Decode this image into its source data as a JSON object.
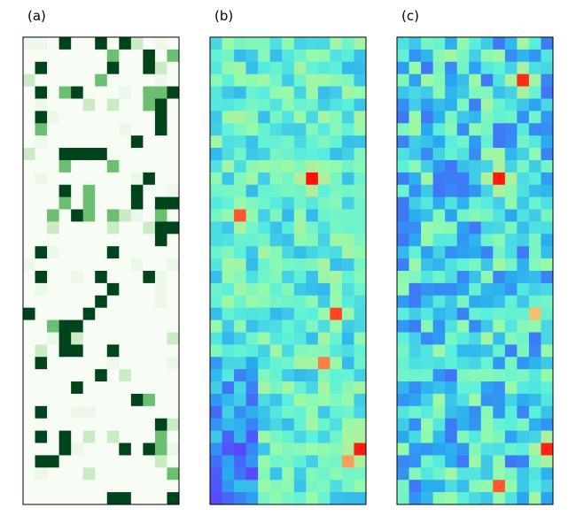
{
  "chart_data": [
    {
      "type": "heatmap",
      "label": "(a)",
      "colormap": "Greens",
      "rows": 38,
      "cols": 13,
      "value_range": [
        0,
        1
      ],
      "axes_ticks": "none",
      "seed": 11,
      "density": 0.22
    },
    {
      "type": "heatmap",
      "label": "(b)",
      "colormap": "rainbow",
      "rows": 38,
      "cols": 13,
      "value_range": [
        0,
        1
      ],
      "axes_ticks": "none",
      "seed": 29,
      "hotspots": [
        {
          "row": 11,
          "col": 8,
          "value": 0.98
        },
        {
          "row": 14,
          "col": 2,
          "value": 0.9
        },
        {
          "row": 22,
          "col": 10,
          "value": 0.92
        },
        {
          "row": 26,
          "col": 9,
          "value": 0.85
        },
        {
          "row": 33,
          "col": 12,
          "value": 0.97
        },
        {
          "row": 34,
          "col": 11,
          "value": 0.8
        }
      ],
      "low_region_rows": [
        26,
        37
      ]
    },
    {
      "type": "heatmap",
      "label": "(c)",
      "colormap": "rainbow",
      "rows": 38,
      "cols": 13,
      "value_range": [
        0,
        1
      ],
      "axes_ticks": "none",
      "seed": 47,
      "hotspots": [
        {
          "row": 3,
          "col": 10,
          "value": 0.95
        },
        {
          "row": 11,
          "col": 8,
          "value": 0.97
        },
        {
          "row": 22,
          "col": 11,
          "value": 0.75
        },
        {
          "row": 33,
          "col": 12,
          "value": 0.96
        },
        {
          "row": 36,
          "col": 8,
          "value": 0.9
        }
      ]
    }
  ]
}
